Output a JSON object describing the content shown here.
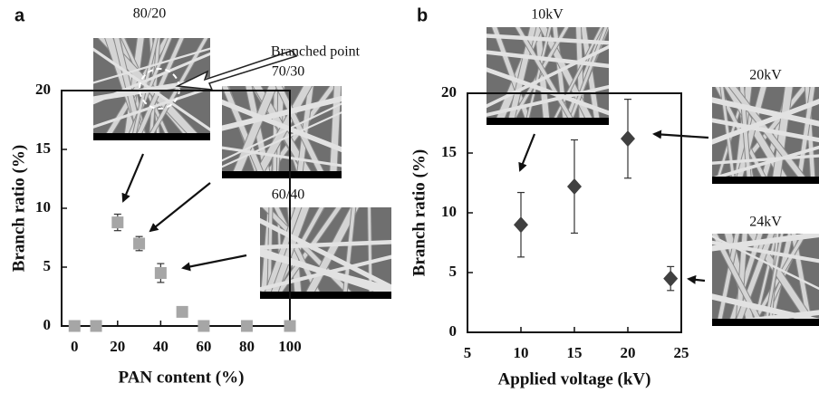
{
  "chart_data": [
    {
      "type": "scatter",
      "panel_label": "a",
      "xlabel": "PAN content (%)",
      "ylabel": "Branch ratio (%)",
      "xlim": [
        -6,
        100
      ],
      "ylim": [
        0,
        20
      ],
      "xticks": [
        0,
        20,
        40,
        60,
        80,
        100
      ],
      "yticks": [
        0,
        5,
        10,
        15,
        20
      ],
      "series": [
        {
          "color": "#a6a6a6",
          "marker": "square",
          "x": [
            0,
            10,
            20,
            30,
            40,
            50,
            60,
            80,
            100
          ],
          "values": [
            0,
            0,
            8.8,
            7.0,
            4.5,
            1.2,
            0,
            0,
            0
          ],
          "errors": [
            null,
            null,
            0.7,
            0.6,
            0.8,
            null,
            null,
            null,
            null
          ]
        }
      ],
      "annotations": [
        "80/20",
        "Branched point",
        "70/30",
        "60/40"
      ]
    },
    {
      "type": "scatter",
      "panel_label": "b",
      "xlabel": "Applied voltage (kV)",
      "ylabel": "Branch ratio (%)",
      "xlim": [
        5,
        25
      ],
      "ylim": [
        0,
        20
      ],
      "xticks": [
        5,
        10,
        15,
        20,
        25
      ],
      "yticks": [
        0,
        5,
        10,
        15,
        20
      ],
      "series": [
        {
          "color": "#404040",
          "marker": "diamond",
          "x": [
            10,
            15,
            20,
            24
          ],
          "values": [
            9.0,
            12.2,
            16.2,
            4.5
          ],
          "errors": [
            2.7,
            3.9,
            3.3,
            1.0
          ]
        }
      ],
      "annotations": [
        "10kV",
        "20kV",
        "24kV"
      ]
    }
  ]
}
